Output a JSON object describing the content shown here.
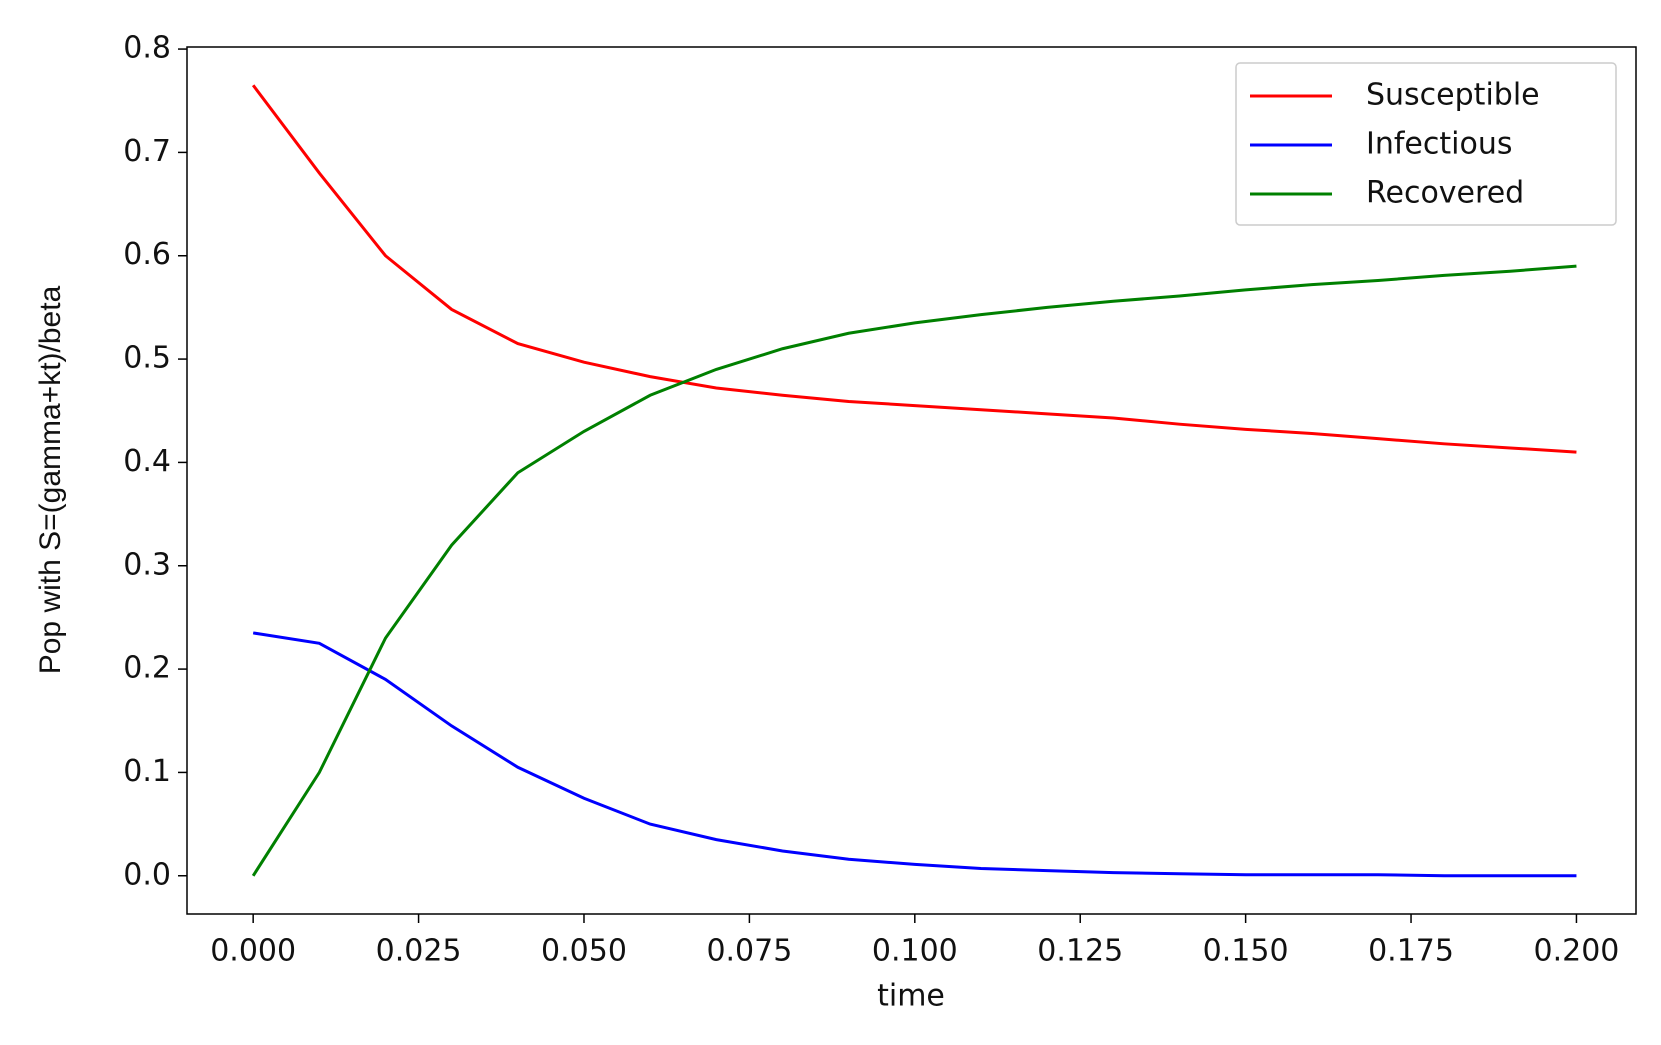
{
  "chart_data": {
    "type": "line",
    "xlabel": "time",
    "ylabel": "Pop with S=(gamma+kt)/beta",
    "x": [
      0,
      0.01,
      0.02,
      0.03,
      0.04,
      0.05,
      0.06,
      0.07,
      0.08,
      0.09,
      0.1,
      0.11,
      0.12,
      0.13,
      0.14,
      0.15,
      0.16,
      0.17,
      0.18,
      0.19,
      0.2
    ],
    "series": [
      {
        "name": "Susceptible",
        "color": "#ff0000",
        "values": [
          0.765,
          0.68,
          0.6,
          0.548,
          0.515,
          0.497,
          0.483,
          0.472,
          0.465,
          0.459,
          0.455,
          0.451,
          0.447,
          0.443,
          0.437,
          0.432,
          0.428,
          0.423,
          0.418,
          0.414,
          0.41
        ]
      },
      {
        "name": "Infectious",
        "color": "#0000ff",
        "values": [
          0.235,
          0.225,
          0.19,
          0.145,
          0.105,
          0.075,
          0.05,
          0.035,
          0.024,
          0.016,
          0.011,
          0.007,
          0.005,
          0.003,
          0.002,
          0.001,
          0.001,
          0.001,
          0,
          0,
          0
        ]
      },
      {
        "name": "Recovered",
        "color": "#008000",
        "values": [
          0,
          0.1,
          0.23,
          0.32,
          0.39,
          0.43,
          0.465,
          0.49,
          0.51,
          0.525,
          0.535,
          0.543,
          0.55,
          0.556,
          0.561,
          0.567,
          0.572,
          0.576,
          0.581,
          0.585,
          0.59
        ]
      }
    ],
    "xlim": [
      -0.01,
      0.209
    ],
    "ylim": [
      -0.037,
      0.802
    ],
    "xticks": [
      {
        "value": 0,
        "label": "0.000"
      },
      {
        "value": 0.025,
        "label": "0.025"
      },
      {
        "value": 0.05,
        "label": "0.050"
      },
      {
        "value": 0.075,
        "label": "0.075"
      },
      {
        "value": 0.1,
        "label": "0.100"
      },
      {
        "value": 0.125,
        "label": "0.125"
      },
      {
        "value": 0.15,
        "label": "0.150"
      },
      {
        "value": 0.175,
        "label": "0.175"
      },
      {
        "value": 0.2,
        "label": "0.200"
      }
    ],
    "yticks": [
      {
        "value": 0,
        "label": "0.0"
      },
      0.1,
      0.2,
      0.3,
      0.4,
      0.5,
      0.6,
      0.7,
      0.8
    ],
    "legend": "upper right",
    "grid": false
  }
}
